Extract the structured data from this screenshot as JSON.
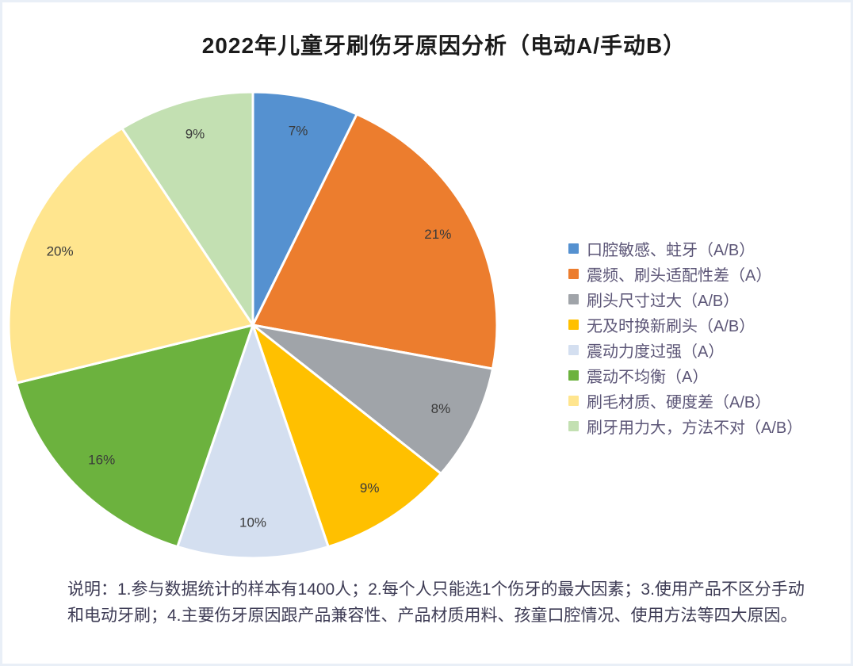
{
  "header": {
    "title": "2022年儿童牙刷伤牙原因分析（电动A/手动B）"
  },
  "chart_data": {
    "type": "pie",
    "title": "2022年儿童牙刷伤牙原因分析（电动A/手动B）",
    "legend_position": "right",
    "start_angle_deg": 0,
    "direction": "clockwise",
    "total": 100,
    "unit": "%",
    "slices": [
      {
        "label": "口腔敏感、蛀牙（A/B）",
        "value": 7,
        "pct_label": "7%",
        "color": "#5591D0"
      },
      {
        "label": "震频、刷头适配性差（A）",
        "value": 21,
        "pct_label": "21%",
        "color": "#EC7D2E"
      },
      {
        "label": "刷头尺寸过大（A/B）",
        "value": 8,
        "pct_label": "8%",
        "color": "#A0A4A9"
      },
      {
        "label": "无及时换新刷头（A/B）",
        "value": 9,
        "pct_label": "9%",
        "color": "#FFC000"
      },
      {
        "label": "震动力度过强（A）",
        "value": 10,
        "pct_label": "10%",
        "color": "#D4DFF0"
      },
      {
        "label": "震动不均衡（A）",
        "value": 16,
        "pct_label": "16%",
        "color": "#6CB23E"
      },
      {
        "label": "刷毛材质、硬度差（A/B）",
        "value": 20,
        "pct_label": "20%",
        "color": "#FFE58E"
      },
      {
        "label": "刷牙用力大，方法不对（A/B）",
        "value": 9,
        "pct_label": "9%",
        "color": "#C3E0B2"
      }
    ]
  },
  "footer": {
    "note": "说明：1.参与数据统计的样本有1400人；2.每个人只能选1个伤牙的最大因素；3.使用产品不区分手动和电动牙刷；4.主要伤牙原因跟产品兼容性、产品材质用料、孩童口腔情况、使用方法等四大原因。"
  },
  "colors": {
    "title_text": "#1B1B1B",
    "legend_text": "#5C5677",
    "note_text": "#3E3C55",
    "slice_label_text": "#3A3A3A",
    "slice_border": "#FFFFFF",
    "page_frame": "#E9EFF7"
  }
}
